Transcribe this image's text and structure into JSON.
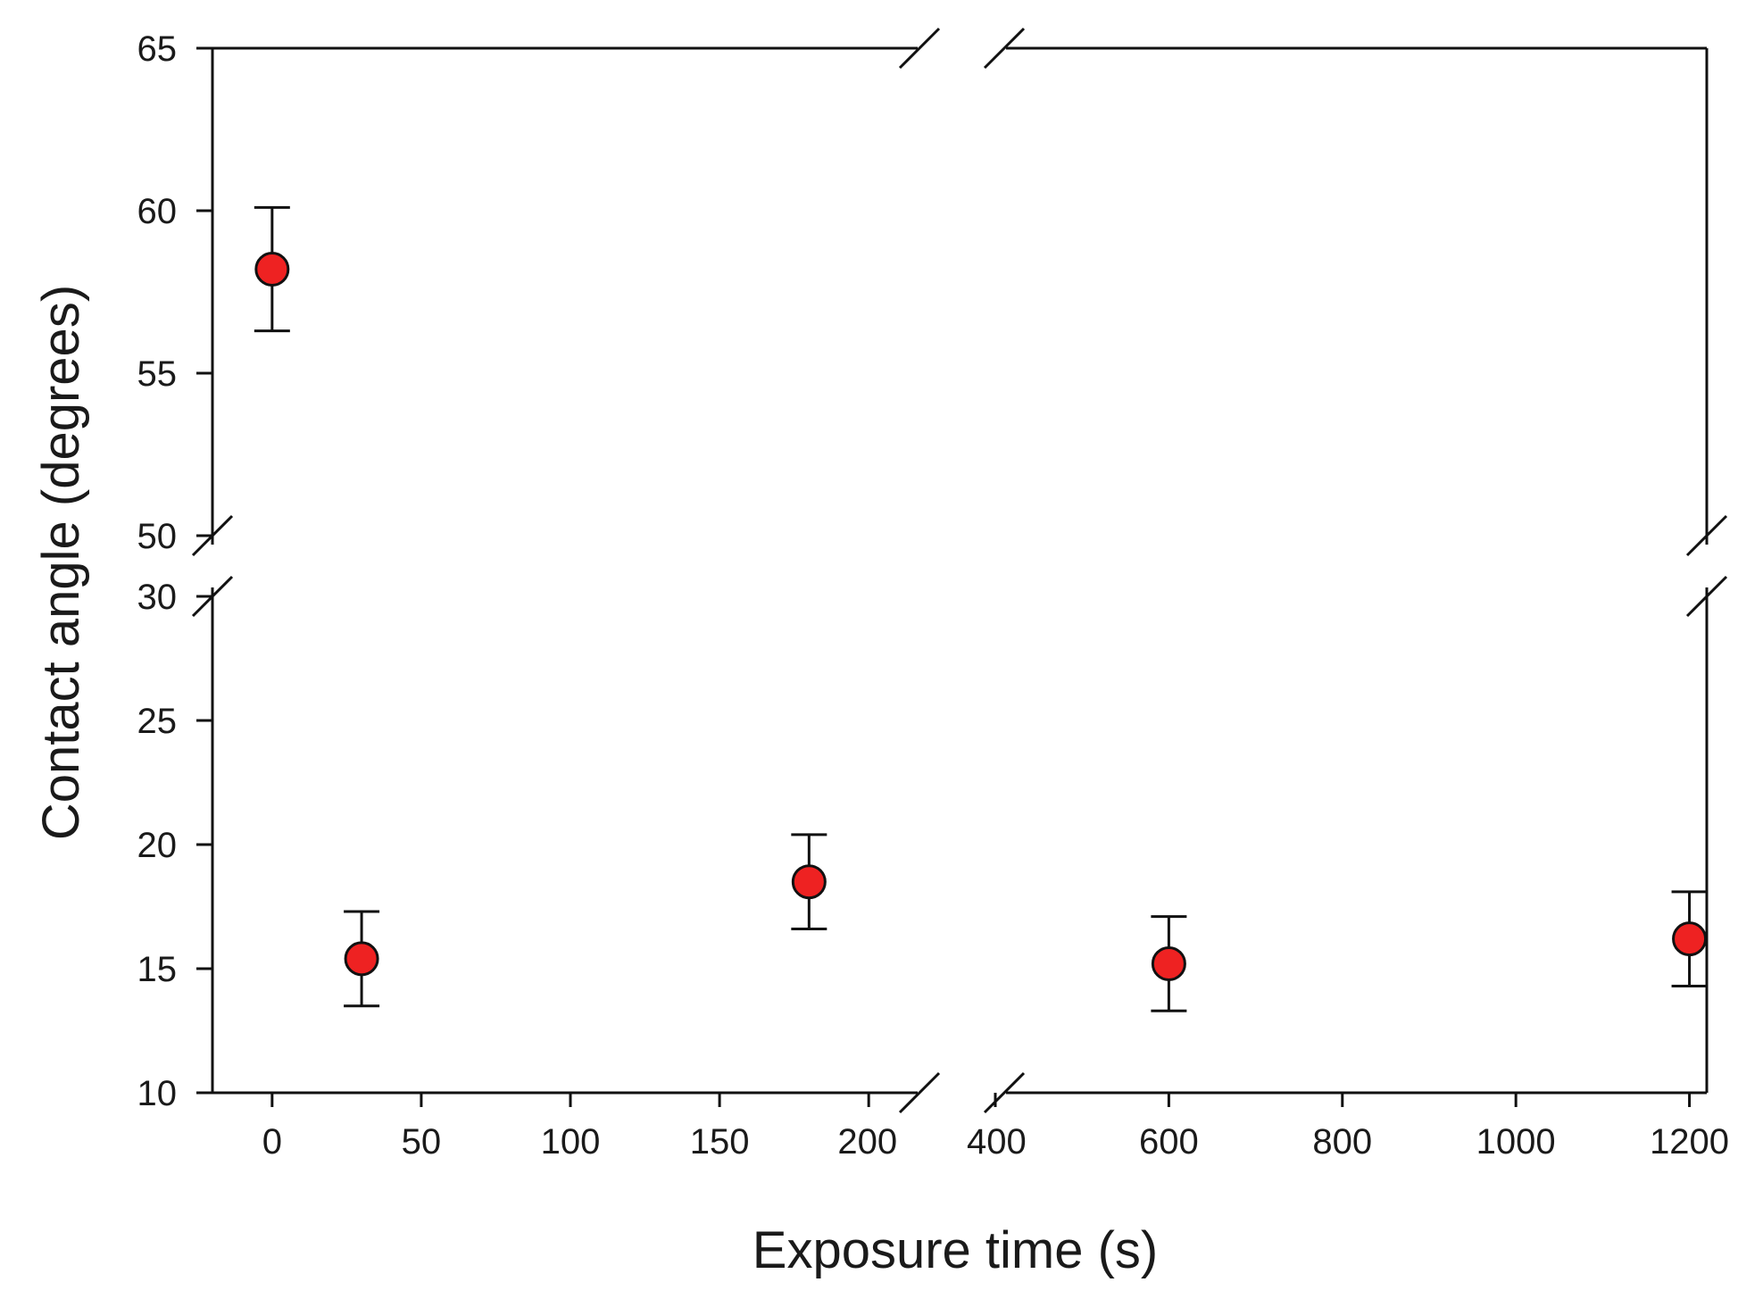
{
  "chart_data": {
    "type": "scatter",
    "xlabel": "Exposure time (s)",
    "ylabel": "Contact angle (degrees)",
    "x_axis": {
      "broken": true,
      "segments": [
        {
          "range": [
            -20,
            220
          ],
          "ticks": [
            0,
            50,
            100,
            150,
            200
          ]
        },
        {
          "range": [
            400,
            1220
          ],
          "ticks": [
            400,
            600,
            800,
            1000,
            1200
          ]
        }
      ]
    },
    "y_axis": {
      "broken": true,
      "segments": [
        {
          "range": [
            10,
            30
          ],
          "ticks": [
            10,
            15,
            20,
            25,
            30
          ]
        },
        {
          "range": [
            50,
            65
          ],
          "ticks": [
            50,
            55,
            60,
            65
          ]
        }
      ]
    },
    "grid": false,
    "legend": null,
    "marker_color": "#ee2222",
    "marker_edge_color": "#111111",
    "points": [
      {
        "x": 0,
        "y": 58.2,
        "yerr": 1.9
      },
      {
        "x": 30,
        "y": 15.4,
        "yerr": 1.9
      },
      {
        "x": 180,
        "y": 18.5,
        "yerr": 1.9
      },
      {
        "x": 600,
        "y": 15.2,
        "yerr": 1.9
      },
      {
        "x": 1200,
        "y": 16.2,
        "yerr": 1.9
      }
    ]
  }
}
